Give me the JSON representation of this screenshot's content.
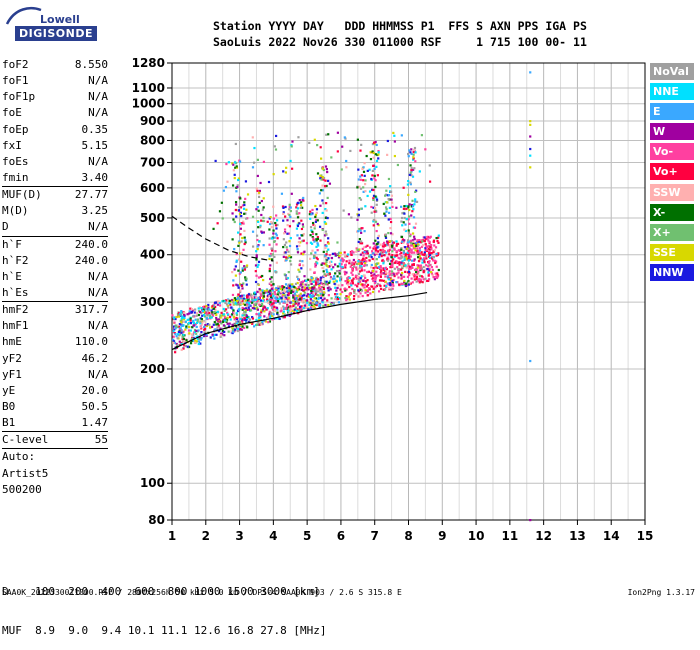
{
  "logo": {
    "line1": "Lowell",
    "line2": "DIGISONDE"
  },
  "header": {
    "line1": "Station YYYY DAY   DDD HHMMSS P1  FFS S AXN PPS IGA PS",
    "line2": "SaoLuis 2022 Nov26 330 011000 RSF     1 715 100 00- 11"
  },
  "params": [
    {
      "label": "foF2",
      "value": "8.550"
    },
    {
      "label": "foF1",
      "value": "N/A"
    },
    {
      "label": "foF1p",
      "value": "N/A"
    },
    {
      "label": "foE",
      "value": "N/A"
    },
    {
      "label": "foEp",
      "value": "0.35"
    },
    {
      "label": "fxI",
      "value": "5.15"
    },
    {
      "label": "foEs",
      "value": "N/A"
    },
    {
      "label": "fmin",
      "value": "3.40",
      "sep": true
    },
    {
      "label": "MUF(D)",
      "value": "27.77"
    },
    {
      "label": "M(D)",
      "value": "3.25"
    },
    {
      "label": "D",
      "value": "N/A",
      "sep": true
    },
    {
      "label": "h`F",
      "value": "240.0"
    },
    {
      "label": "h`F2",
      "value": "240.0"
    },
    {
      "label": "h`E",
      "value": "N/A"
    },
    {
      "label": "h`Es",
      "value": "N/A",
      "sep": true
    },
    {
      "label": "hmF2",
      "value": "317.7"
    },
    {
      "label": "hmF1",
      "value": "N/A"
    },
    {
      "label": "hmE",
      "value": "110.0"
    },
    {
      "label": "yF2",
      "value": "46.2"
    },
    {
      "label": "yF1",
      "value": "N/A"
    },
    {
      "label": "yE",
      "value": "20.0"
    },
    {
      "label": "B0",
      "value": "50.5"
    },
    {
      "label": "B1",
      "value": "1.47",
      "sep": true
    },
    {
      "label": "C-level",
      "value": "55",
      "sep": true
    },
    {
      "label": "Auto:",
      "value": ""
    },
    {
      "label": "Artist5",
      "value": ""
    },
    {
      "label": "500200",
      "value": ""
    }
  ],
  "legend": [
    {
      "label": "NoVal",
      "color": "#a0a0a0"
    },
    {
      "label": "NNE",
      "color": "#00e0ff"
    },
    {
      "label": "E",
      "color": "#3aa8ff"
    },
    {
      "label": "W",
      "color": "#a000a0"
    },
    {
      "label": "Vo-",
      "color": "#ff40a0"
    },
    {
      "label": "Vo+",
      "color": "#ff0040"
    },
    {
      "label": "SSW",
      "color": "#ffb0b0"
    },
    {
      "label": "X-",
      "color": "#007000"
    },
    {
      "label": "X+",
      "color": "#70c070"
    },
    {
      "label": "SSE",
      "color": "#d8d800"
    },
    {
      "label": "NNW",
      "color": "#1a1ae0"
    }
  ],
  "chart_data": {
    "type": "scatter",
    "title": "",
    "xlabel": "",
    "ylabel": "",
    "x_ticks": [
      "1",
      "2",
      "3",
      "4",
      "5",
      "6",
      "7",
      "8",
      "9",
      "10",
      "11",
      "12",
      "13",
      "14",
      "15"
    ],
    "xlim": [
      1,
      15
    ],
    "y_scale": "log",
    "y_ticks": [
      "80",
      "100",
      "200",
      "300",
      "400",
      "500",
      "600",
      "700",
      "800",
      "900",
      "1000",
      "1100",
      "1280"
    ],
    "ylim": [
      80,
      1280
    ],
    "grid": true,
    "trace_curve": [
      [
        1.0,
        225
      ],
      [
        2.0,
        248
      ],
      [
        3.0,
        262
      ],
      [
        4.0,
        272
      ],
      [
        5.0,
        285
      ],
      [
        6.0,
        296
      ],
      [
        7.0,
        305
      ],
      [
        8.0,
        312
      ],
      [
        8.55,
        318
      ]
    ],
    "dashed_profile": [
      [
        1.0,
        505
      ],
      [
        1.5,
        470
      ],
      [
        2.0,
        440
      ],
      [
        2.7,
        410
      ],
      [
        3.3,
        395
      ],
      [
        4.0,
        385
      ]
    ]
  },
  "dtable": {
    "line1": "D    100  200  400  600  800 1000 1500 3000 [km]",
    "line2": "MUF  8.9  9.0  9.4 10.1 11.1 12.6 16.8 27.8 [MHz]"
  },
  "footer": {
    "left": "SAA0K_2022330011000.RSF / 280fx256h 50 kHz 5.0 km / DPS-4 SAA0K 903 / 2.6 S 315.8 E",
    "right": "Ion2Png 1.3.17"
  }
}
